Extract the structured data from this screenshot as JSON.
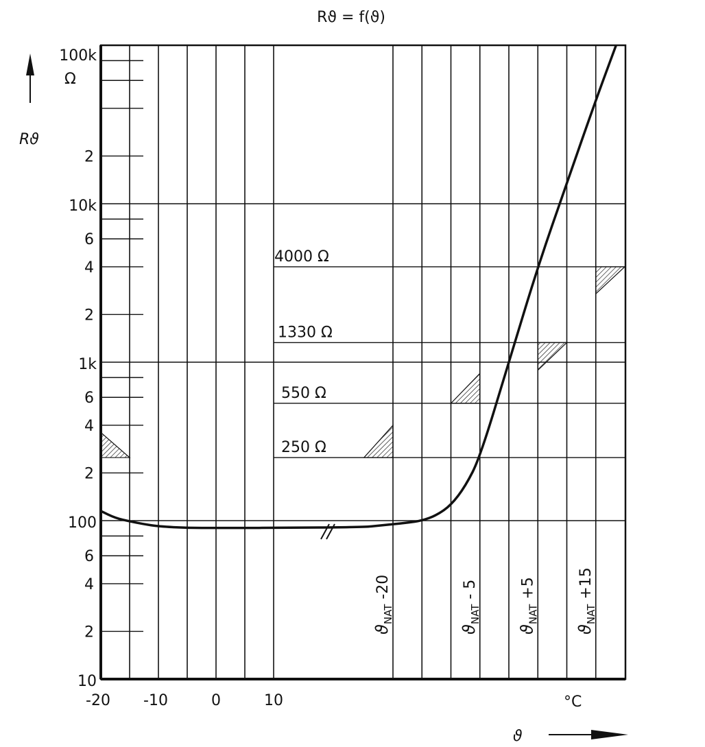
{
  "chart_data": {
    "type": "line",
    "title": "Rϑ = f(ϑ)",
    "ylabel": "Rϑ",
    "yunit": "Ω",
    "xlabel": "ϑ",
    "xunit": "°C",
    "yscale": "log",
    "ylim": [
      10,
      100000
    ],
    "grid": true,
    "x_axis_break": true,
    "x_segments": [
      {
        "reference": "absolute",
        "range": [
          -20,
          10
        ],
        "grid_step": 5,
        "tick_labels": [
          "-20",
          "-10",
          "0",
          "10"
        ],
        "tick_values": [
          -20,
          -10,
          0,
          10
        ]
      },
      {
        "reference": "ϑNAT",
        "range": [
          -25,
          20
        ],
        "grid_step": 5,
        "tick_labels": [
          {
            "base": "ϑ",
            "sub": "NAT",
            "offset": "-20",
            "value": -20
          },
          {
            "base": "ϑ",
            "sub": "NAT",
            "offset": "- 5",
            "value": -5
          },
          {
            "base": "ϑ",
            "sub": "NAT",
            "offset": "+5",
            "value": 5
          },
          {
            "base": "ϑ",
            "sub": "NAT",
            "offset": "+15",
            "value": 15
          }
        ]
      }
    ],
    "y_major_labels": [
      {
        "value": 100000,
        "text": "100k"
      },
      {
        "value": 10000,
        "text": "10k"
      },
      {
        "value": 1000,
        "text": "1k"
      },
      {
        "value": 100,
        "text": "100"
      },
      {
        "value": 10,
        "text": "10"
      }
    ],
    "y_minor_labels": [
      "2",
      "4",
      "6"
    ],
    "reference_levels": [
      {
        "value": 4000,
        "text": "4000 Ω"
      },
      {
        "value": 1330,
        "text": "1330 Ω"
      },
      {
        "value": 550,
        "text": "550 Ω"
      },
      {
        "value": 250,
        "text": "250 Ω"
      }
    ],
    "series": [
      {
        "points_absolute": [
          [
            -20,
            115
          ],
          [
            -17.5,
            104
          ],
          [
            -15,
            99
          ],
          [
            -12.5,
            95
          ],
          [
            -10,
            92
          ],
          [
            -5,
            90
          ],
          [
            0,
            90
          ],
          [
            5,
            90
          ],
          [
            10,
            90
          ]
        ],
        "points_nat": [
          [
            -25,
            91
          ],
          [
            -22.5,
            93
          ],
          [
            -20,
            95
          ],
          [
            -17.5,
            97
          ],
          [
            -15,
            100
          ],
          [
            -12.5,
            108
          ],
          [
            -10,
            125
          ],
          [
            -7.5,
            165
          ],
          [
            -5,
            250
          ],
          [
            0,
            1000
          ],
          [
            5,
            4000
          ],
          [
            10,
            13500
          ],
          [
            15,
            45000
          ],
          [
            18.5,
            100000
          ]
        ]
      }
    ],
    "tolerance_markers": [
      {
        "reference": "absolute",
        "t_from": -20,
        "t_to": -15,
        "r_low": 250,
        "r_high": 360,
        "corner": "bottom-left"
      },
      {
        "reference": "ϑNAT",
        "t_from": -25,
        "t_to": -20,
        "r_low": 250,
        "r_high": 400,
        "corner": "bottom-right"
      },
      {
        "reference": "ϑNAT",
        "t_from": -10,
        "t_to": -5,
        "r_low": 550,
        "r_high": 850,
        "corner": "bottom-right"
      },
      {
        "reference": "ϑNAT",
        "t_from": 5,
        "t_to": 10,
        "r_low": 890,
        "r_high": 1330,
        "corner": "top-left"
      },
      {
        "reference": "ϑNAT",
        "t_from": 15,
        "t_to": 20,
        "r_low": 2700,
        "r_high": 4000,
        "corner": "top-left"
      }
    ]
  }
}
